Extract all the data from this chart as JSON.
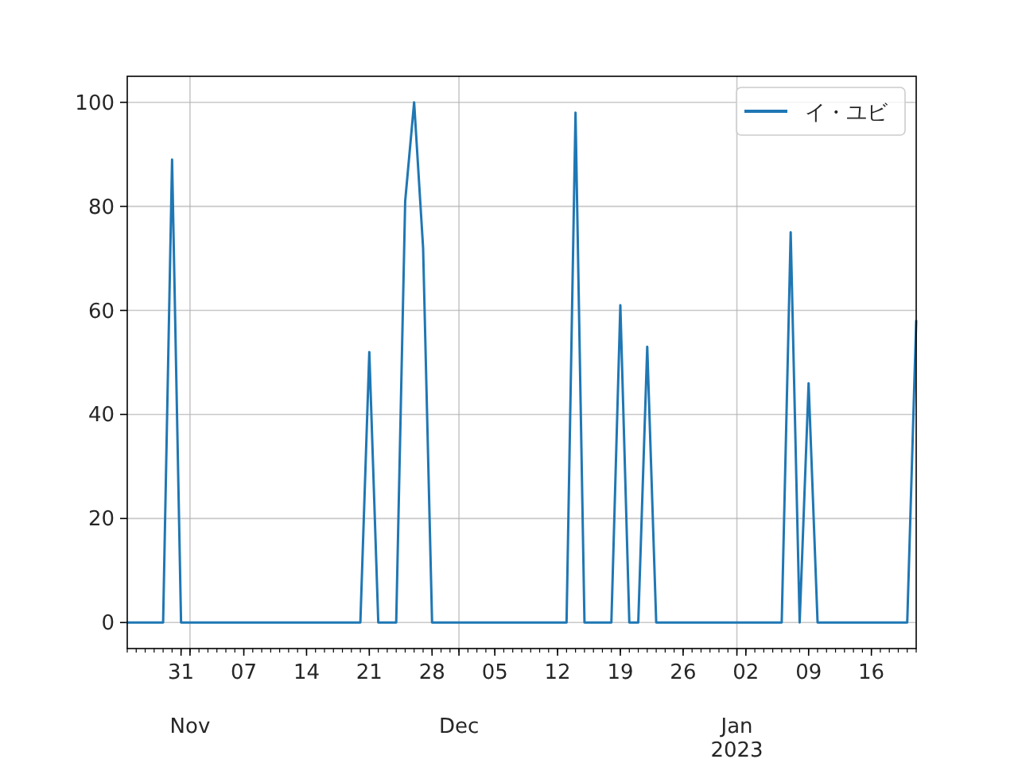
{
  "chart_data": {
    "type": "line",
    "x": [
      "2022-10-25",
      "2022-10-26",
      "2022-10-27",
      "2022-10-28",
      "2022-10-29",
      "2022-10-30",
      "2022-10-31",
      "2022-11-01",
      "2022-11-02",
      "2022-11-03",
      "2022-11-04",
      "2022-11-05",
      "2022-11-06",
      "2022-11-07",
      "2022-11-08",
      "2022-11-09",
      "2022-11-10",
      "2022-11-11",
      "2022-11-12",
      "2022-11-13",
      "2022-11-14",
      "2022-11-15",
      "2022-11-16",
      "2022-11-17",
      "2022-11-18",
      "2022-11-19",
      "2022-11-20",
      "2022-11-21",
      "2022-11-22",
      "2022-11-23",
      "2022-11-24",
      "2022-11-25",
      "2022-11-26",
      "2022-11-27",
      "2022-11-28",
      "2022-11-29",
      "2022-11-30",
      "2022-12-01",
      "2022-12-02",
      "2022-12-03",
      "2022-12-04",
      "2022-12-05",
      "2022-12-06",
      "2022-12-07",
      "2022-12-08",
      "2022-12-09",
      "2022-12-10",
      "2022-12-11",
      "2022-12-12",
      "2022-12-13",
      "2022-12-14",
      "2022-12-15",
      "2022-12-16",
      "2022-12-17",
      "2022-12-18",
      "2022-12-19",
      "2022-12-20",
      "2022-12-21",
      "2022-12-22",
      "2022-12-23",
      "2022-12-24",
      "2022-12-25",
      "2022-12-26",
      "2022-12-27",
      "2022-12-28",
      "2022-12-29",
      "2022-12-30",
      "2022-12-31",
      "2023-01-01",
      "2023-01-02",
      "2023-01-03",
      "2023-01-04",
      "2023-01-05",
      "2023-01-06",
      "2023-01-07",
      "2023-01-08",
      "2023-01-09",
      "2023-01-10",
      "2023-01-11",
      "2023-01-12",
      "2023-01-13",
      "2023-01-14",
      "2023-01-15",
      "2023-01-16",
      "2023-01-17",
      "2023-01-18",
      "2023-01-19",
      "2023-01-20",
      "2023-01-21"
    ],
    "series": [
      {
        "name": "イ・ユビ",
        "color": "#1f77b4",
        "values": [
          0,
          0,
          0,
          0,
          0,
          89,
          0,
          0,
          0,
          0,
          0,
          0,
          0,
          0,
          0,
          0,
          0,
          0,
          0,
          0,
          0,
          0,
          0,
          0,
          0,
          0,
          0,
          52,
          0,
          0,
          0,
          81,
          100,
          72,
          0,
          0,
          0,
          0,
          0,
          0,
          0,
          0,
          0,
          0,
          0,
          0,
          0,
          0,
          0,
          0,
          98,
          0,
          0,
          0,
          0,
          61,
          0,
          0,
          53,
          0,
          0,
          0,
          0,
          0,
          0,
          0,
          0,
          0,
          0,
          0,
          0,
          0,
          0,
          0,
          75,
          0,
          46,
          0,
          0,
          0,
          0,
          0,
          0,
          0,
          0,
          0,
          0,
          0,
          58
        ]
      }
    ],
    "xlim": [
      "2022-10-25",
      "2023-01-21"
    ],
    "xticks": [
      {
        "value": "2022-10-31",
        "label": "31"
      },
      {
        "value": "2022-11-01",
        "label": null
      },
      {
        "value": "2022-11-07",
        "label": "07"
      },
      {
        "value": "2022-11-14",
        "label": "14"
      },
      {
        "value": "2022-11-21",
        "label": "21"
      },
      {
        "value": "2022-11-28",
        "label": "28"
      },
      {
        "value": "2022-12-01",
        "label": null
      },
      {
        "value": "2022-12-05",
        "label": "05"
      },
      {
        "value": "2022-12-12",
        "label": "12"
      },
      {
        "value": "2022-12-19",
        "label": "19"
      },
      {
        "value": "2022-12-26",
        "label": "26"
      },
      {
        "value": "2023-01-01",
        "label": null
      },
      {
        "value": "2023-01-02",
        "label": "02"
      },
      {
        "value": "2023-01-09",
        "label": "09"
      },
      {
        "value": "2023-01-16",
        "label": "16"
      }
    ],
    "ylim": [
      -5,
      105
    ],
    "yticks": [
      0,
      20,
      40,
      60,
      80,
      100
    ],
    "annotations": [
      "Nov",
      "Dec",
      "Jan\n2023"
    ],
    "grid": true,
    "legend": "top right",
    "line_style": "solid",
    "marker": "none"
  }
}
